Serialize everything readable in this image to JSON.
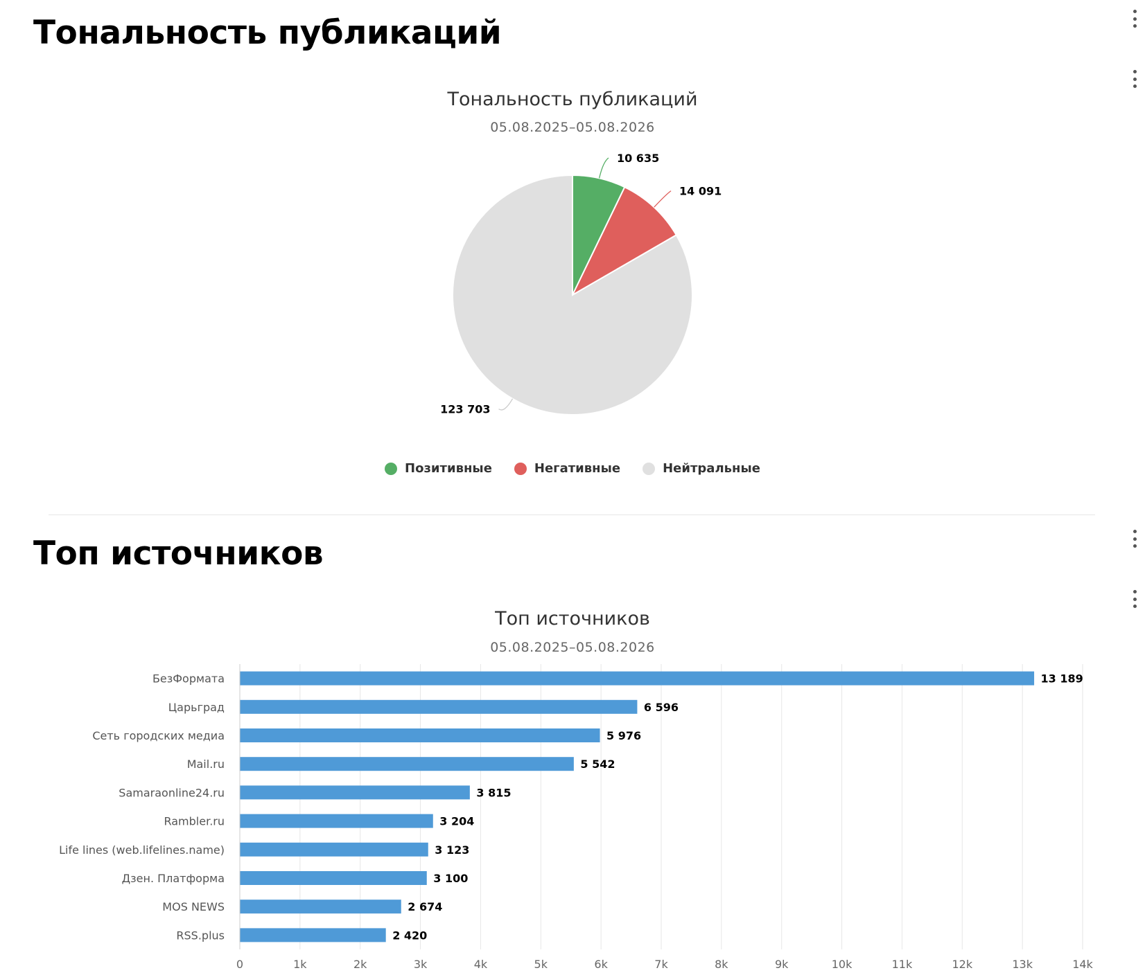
{
  "sections": {
    "sentiment": {
      "heading": "Тональность публикаций",
      "menu_icon": "kebab-menu-icon"
    },
    "sources": {
      "heading": "Топ источников",
      "menu_icon": "kebab-menu-icon"
    }
  },
  "chart_data": [
    {
      "type": "pie",
      "title": "Тональность публикаций",
      "subtitle": "05.08.2025–05.08.2026",
      "labels": [
        "Позитивные",
        "Негативные",
        "Нейтральные"
      ],
      "values": [
        10635,
        14091,
        123703
      ],
      "value_labels": [
        "10 635",
        "14 091",
        "123 703"
      ],
      "colors": [
        "#55ae65",
        "#df5f5c",
        "#e0e0e0"
      ],
      "legend": "bottom-center"
    },
    {
      "type": "bar",
      "orientation": "horizontal",
      "title": "Топ источников",
      "subtitle": "05.08.2025–05.08.2026",
      "categories": [
        "БезФормата",
        "Царьград",
        "Сеть городских медиа",
        "Mail.ru",
        "Samaraonline24.ru",
        "Rambler.ru",
        "Life lines (web.lifelines.name)",
        "Дзен. Платформа",
        "MOS NEWS",
        "RSS.plus"
      ],
      "values": [
        13189,
        6596,
        5976,
        5542,
        3815,
        3204,
        3123,
        3100,
        2674,
        2420
      ],
      "value_labels": [
        "13 189",
        "6 596",
        "5 976",
        "5 542",
        "3 815",
        "3 204",
        "3 123",
        "3 100",
        "2 674",
        "2 420"
      ],
      "xlim": [
        0,
        14000
      ],
      "ticks": [
        0,
        1000,
        2000,
        3000,
        4000,
        5000,
        6000,
        7000,
        8000,
        9000,
        10000,
        11000,
        12000,
        13000,
        14000
      ],
      "tick_labels": [
        "0",
        "1k",
        "2k",
        "3k",
        "4k",
        "5k",
        "6k",
        "7k",
        "8k",
        "9k",
        "10k",
        "11k",
        "12k",
        "13k",
        "14k"
      ],
      "color": "#4f9ad7",
      "grid": true
    }
  ]
}
